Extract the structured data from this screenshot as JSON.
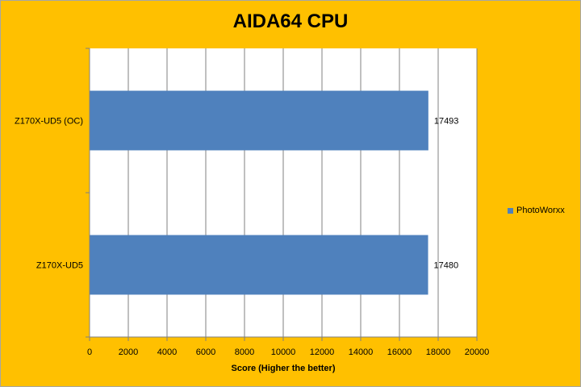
{
  "chart_data": {
    "type": "bar",
    "orientation": "horizontal",
    "title": "AIDA64 CPU",
    "xlabel": "Score (Higher the better)",
    "ylabel": "",
    "categories": [
      "Z170X-UD5 (OC)",
      "Z170X-UD5"
    ],
    "series": [
      {
        "name": "PhotoWorxx",
        "values": [
          17493,
          17480
        ]
      }
    ],
    "xlim": [
      0,
      20000
    ],
    "ticks": [
      0,
      2000,
      4000,
      6000,
      8000,
      10000,
      12000,
      14000,
      16000,
      18000,
      20000
    ],
    "grid": true,
    "legend": "right",
    "data_labels": true,
    "colors": {
      "background": "#ffc000",
      "plot_area": "#ffffff",
      "bar": "#4f81bd",
      "grid": "#808080"
    }
  }
}
